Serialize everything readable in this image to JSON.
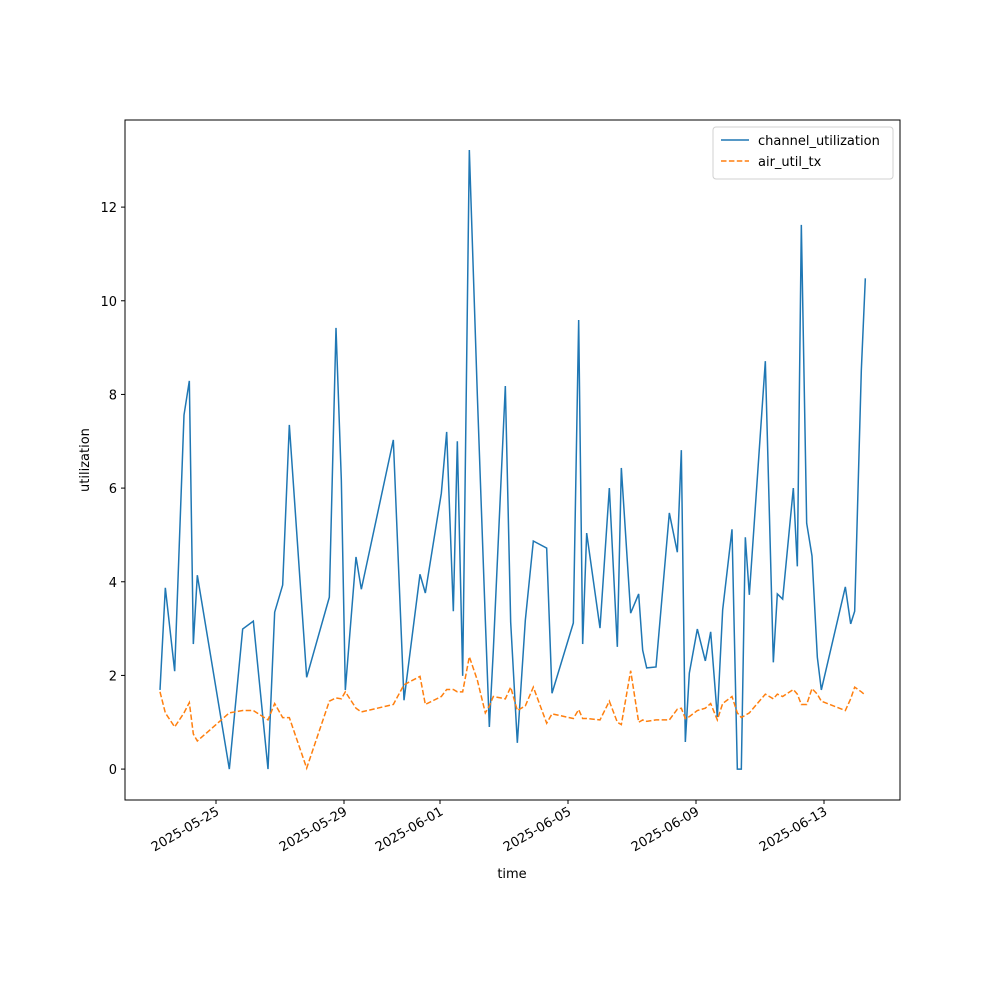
{
  "chart_data": {
    "type": "line",
    "x": [
      "2025-05-23T06:00",
      "2025-05-23T10:00",
      "2025-05-23T17:00",
      "2025-05-24T00:00",
      "2025-05-24T04:00",
      "2025-05-24T07:00",
      "2025-05-24T10:00",
      "2025-05-25T10:00",
      "2025-05-25T20:00",
      "2025-05-26T04:00",
      "2025-05-26T15:00",
      "2025-05-26T20:00",
      "2025-05-27T02:00",
      "2025-05-27T07:00",
      "2025-05-27T20:00",
      "2025-05-28T13:00",
      "2025-05-28T18:00",
      "2025-05-28T22:00",
      "2025-05-29T01:00",
      "2025-05-29T09:00",
      "2025-05-29T13:00",
      "2025-05-30T13:00",
      "2025-05-30T21:00",
      "2025-05-31T09:00",
      "2025-05-31T13:00",
      "2025-06-01T01:00",
      "2025-06-01T05:00",
      "2025-06-01T10:00",
      "2025-06-01T13:00",
      "2025-06-01T17:00",
      "2025-06-01T22:00",
      "2025-06-02T04:00",
      "2025-06-02T10:00",
      "2025-06-02T13:00",
      "2025-06-02T16:00",
      "2025-06-03T01:00",
      "2025-06-03T05:00",
      "2025-06-03T10:00",
      "2025-06-03T16:00",
      "2025-06-03T22:00",
      "2025-06-04T08:00",
      "2025-06-04T12:00",
      "2025-06-05T04:00",
      "2025-06-05T08:00",
      "2025-06-05T11:00",
      "2025-06-05T14:00",
      "2025-06-06T00:00",
      "2025-06-06T07:00",
      "2025-06-06T13:00",
      "2025-06-06T16:00",
      "2025-06-06T23:00",
      "2025-06-07T05:00",
      "2025-06-07T08:00",
      "2025-06-07T11:00",
      "2025-06-07T18:00",
      "2025-06-08T04:00",
      "2025-06-08T10:00",
      "2025-06-08T13:00",
      "2025-06-08T16:00",
      "2025-06-08T19:00",
      "2025-06-09T01:00",
      "2025-06-09T07:00",
      "2025-06-09T11:00",
      "2025-06-09T16:00",
      "2025-06-09T20:00",
      "2025-06-10T03:00",
      "2025-06-10T07:00",
      "2025-06-10T10:00",
      "2025-06-10T13:00",
      "2025-06-10T16:00",
      "2025-06-11T04:00",
      "2025-06-11T10:00",
      "2025-06-11T13:00",
      "2025-06-11T17:00",
      "2025-06-12T01:00",
      "2025-06-12T04:00",
      "2025-06-12T07:00",
      "2025-06-12T11:00",
      "2025-06-12T15:00",
      "2025-06-12T19:00",
      "2025-06-12T22:00",
      "2025-06-13T16:00",
      "2025-06-13T20:00",
      "2025-06-13T23:00",
      "2025-06-14T04:00",
      "2025-06-14T07:00"
    ],
    "series": [
      {
        "name": "channel_utilization",
        "color": "#1f77b4",
        "dash": false,
        "values": [
          1.69,
          3.87,
          2.09,
          7.56,
          8.29,
          2.67,
          4.14,
          0,
          2.99,
          3.16,
          0,
          3.35,
          3.93,
          7.35,
          1.96,
          3.67,
          9.42,
          6.17,
          1.69,
          4.53,
          3.84,
          7.03,
          1.47,
          4.16,
          3.76,
          5.89,
          7.2,
          3.37,
          7.0,
          1.99,
          13.22,
          7.99,
          3.18,
          0.9,
          2.54,
          8.18,
          3.14,
          0.56,
          3.18,
          4.87,
          4.72,
          1.62,
          3.12,
          9.59,
          2.67,
          5.04,
          3.01,
          6.0,
          2.61,
          6.43,
          3.33,
          3.74,
          2.54,
          2.16,
          2.18,
          5.47,
          4.63,
          6.81,
          0.58,
          2.05,
          2.99,
          2.31,
          2.93,
          1.11,
          3.4,
          5.12,
          0,
          0,
          4.95,
          3.72,
          8.71,
          2.28,
          3.74,
          3.63,
          6.0,
          4.33,
          11.62,
          5.25,
          4.55,
          2.39,
          1.69,
          3.89,
          3.1,
          3.37,
          8.52,
          10.48
        ]
      },
      {
        "name": "air_util_tx",
        "color": "#ff7f0e",
        "dash": true,
        "values": [
          1.65,
          1.2,
          0.9,
          1.2,
          1.42,
          0.75,
          0.6,
          1.2,
          1.25,
          1.25,
          1.05,
          1.4,
          1.1,
          1.1,
          0.02,
          1.45,
          1.52,
          1.5,
          1.65,
          1.3,
          1.22,
          1.38,
          1.8,
          1.98,
          1.38,
          1.55,
          1.7,
          1.7,
          1.65,
          1.65,
          2.4,
          1.9,
          1.2,
          1.35,
          1.55,
          1.5,
          1.75,
          1.25,
          1.35,
          1.75,
          0.98,
          1.18,
          1.08,
          1.27,
          1.08,
          1.08,
          1.05,
          1.45,
          1.0,
          0.95,
          2.1,
          1.0,
          1.05,
          1.02,
          1.05,
          1.05,
          1.28,
          1.3,
          1.08,
          1.12,
          1.25,
          1.3,
          1.4,
          1.05,
          1.4,
          1.55,
          1.2,
          1.1,
          1.15,
          1.2,
          1.6,
          1.5,
          1.6,
          1.55,
          1.7,
          1.6,
          1.38,
          1.38,
          1.72,
          1.6,
          1.45,
          1.25,
          1.5,
          1.75,
          1.65,
          1.58
        ]
      }
    ],
    "xlabel": "time",
    "ylabel": "utilization",
    "xlim": [
      "2025-05-22T03:45",
      "2025-06-15T09:00"
    ],
    "xticks": [
      "2025-05-25",
      "2025-05-29",
      "2025-06-01",
      "2025-06-05",
      "2025-06-09",
      "2025-06-13"
    ],
    "ylim": [
      -0.66,
      13.86
    ],
    "yticks": [
      0,
      2,
      4,
      6,
      8,
      10,
      12
    ],
    "legend": "upper right",
    "grid": false
  }
}
